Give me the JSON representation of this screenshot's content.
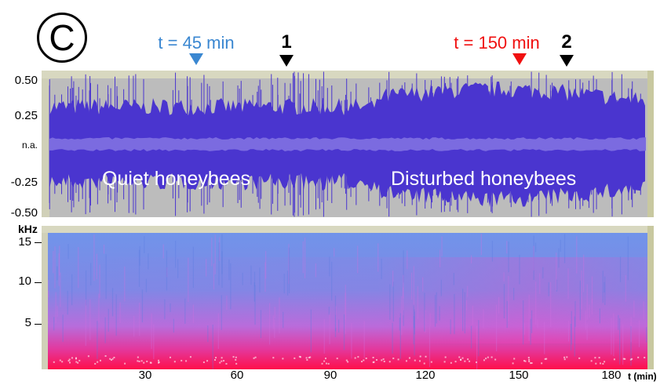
{
  "panel_letter": "C",
  "markers": {
    "t45": {
      "label": "t = 45 min",
      "color": "#3a87d1"
    },
    "m1": {
      "label": "1"
    },
    "t150": {
      "label": "t = 150 min",
      "color": "#f01010"
    },
    "m2": {
      "label": "2"
    }
  },
  "waveform": {
    "y_ticks": [
      "0.50",
      "0.25",
      "n.a.",
      "-0.25",
      "-0.50"
    ],
    "texts": {
      "left": "Quiet honeybees",
      "right": "Disturbed honeybees"
    },
    "colors": {
      "background": "#bcbcbc",
      "wave": "#4a35cf",
      "center": "#7b6be0"
    }
  },
  "spectrogram": {
    "y_unit": "kHz",
    "y_ticks": [
      "15",
      "10",
      "5"
    ],
    "colors": {
      "top": "#6f95ea",
      "mid": "#c46cdc",
      "bottom": "#ff0f4a"
    }
  },
  "x_axis": {
    "ticks": [
      "30",
      "60",
      "90",
      "120",
      "150",
      "180"
    ],
    "unit": "t (min)"
  }
}
